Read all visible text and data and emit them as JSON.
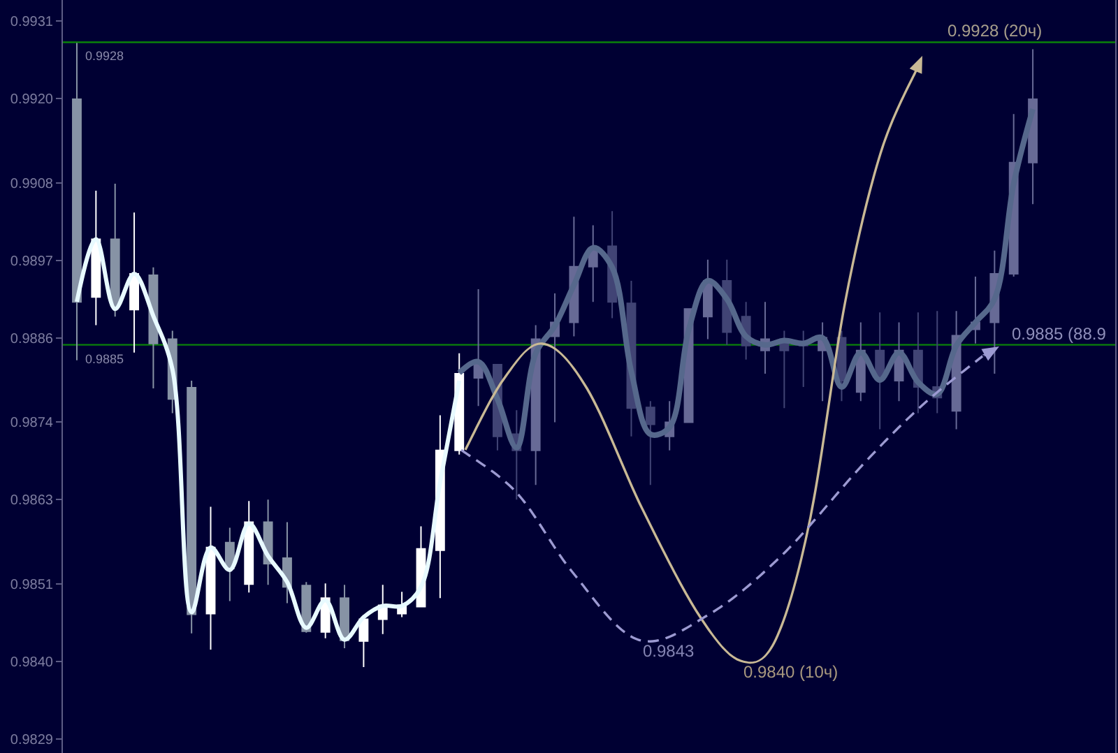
{
  "chart_data": {
    "type": "candlestick",
    "categories": [
      null,
      null,
      null,
      null,
      null,
      null,
      null,
      null,
      null,
      null,
      null,
      null,
      null,
      null,
      null,
      null,
      null,
      null,
      null,
      null,
      null,
      null,
      null,
      null,
      null,
      null,
      null,
      null,
      null,
      null,
      null,
      null,
      null,
      null,
      null,
      null,
      null,
      null,
      null,
      null,
      null,
      null,
      null,
      null,
      null,
      null,
      null,
      null,
      null,
      null,
      null,
      null,
      null,
      null,
      null
    ],
    "ylim": [
      0.9827,
      0.9934
    ],
    "yticks": [
      0.9829,
      {
        "value": 0.984,
        "label": "0.9840"
      },
      0.9851,
      0.9863,
      0.9874,
      0.9886,
      0.9897,
      0.9908,
      {
        "value": 0.992,
        "label": "0.9920"
      },
      0.9931
    ],
    "tick_labels": "y",
    "series": [
      {
        "type": "line",
        "color": "#e8faff",
        "values": [
          0.98911,
          0.99,
          0.98901,
          0.98951,
          0.98891,
          0.98815,
          0.9847,
          0.98562,
          0.9853,
          0.98596,
          0.9855,
          0.98513,
          0.98448,
          0.98487,
          0.98431,
          0.98463,
          0.98479,
          0.98479,
          0.98506,
          0.98655,
          0.98799,
          null,
          null,
          null,
          null,
          null,
          null,
          null,
          null,
          null,
          null,
          null,
          null,
          null,
          null,
          null,
          null,
          null,
          null,
          null,
          null,
          null,
          null,
          null,
          null,
          null,
          null,
          null,
          null,
          null,
          null,
          null,
          null,
          null,
          null
        ]
      },
      {
        "type": "line",
        "color": "#56688c",
        "values": [
          null,
          null,
          null,
          null,
          null,
          null,
          null,
          null,
          null,
          null,
          null,
          null,
          null,
          null,
          null,
          null,
          null,
          null,
          null,
          null,
          0.9881,
          0.98826,
          0.98773,
          0.98704,
          0.98838,
          0.98877,
          0.98935,
          0.98988,
          0.9896,
          0.98812,
          0.98723,
          0.98733,
          0.98871,
          0.98941,
          0.98915,
          0.98862,
          0.9885,
          0.98856,
          0.98852,
          0.9886,
          0.9879,
          0.98839,
          0.988,
          0.98839,
          0.98797,
          0.9878,
          0.98849,
          0.98882,
          0.98915,
          0.99079,
          0.99185,
          null,
          null,
          null,
          null
        ]
      },
      {
        "ohlc": [
          [
            0.99199,
            0.99279,
            0.98828,
            0.98911
          ],
          [
            0.98918,
            0.99069,
            0.98878,
            0.99
          ],
          [
            0.99,
            0.99079,
            0.9889,
            0.98905
          ],
          [
            0.989,
            0.99038,
            0.98839,
            0.98951
          ],
          [
            0.98949,
            0.9896,
            0.98788,
            0.98852
          ],
          [
            0.98858,
            0.9887,
            0.98753,
            0.98773
          ],
          [
            0.98789,
            0.98799,
            0.9844,
            0.98467
          ],
          [
            0.98468,
            0.9862,
            0.98417,
            0.98562
          ],
          [
            0.98569,
            0.9859,
            0.98486,
            0.98532
          ],
          [
            0.9851,
            0.98628,
            0.98498,
            0.98598
          ],
          [
            0.98598,
            0.9863,
            0.98509,
            0.98539
          ],
          [
            0.98547,
            0.98598,
            0.98483,
            0.98506
          ],
          [
            0.98508,
            0.98513,
            0.98441,
            0.98443
          ],
          [
            0.98442,
            0.98511,
            0.98433,
            0.9849
          ],
          [
            0.9849,
            0.98509,
            0.98419,
            0.9843
          ],
          [
            0.98429,
            0.98466,
            0.98392,
            0.9846
          ],
          [
            0.9846,
            0.98509,
            0.98439,
            0.9848
          ],
          [
            0.98468,
            0.98499,
            0.98463,
            0.9848
          ],
          [
            0.98478,
            0.98592,
            0.98478,
            0.9856
          ],
          [
            0.98558,
            0.9875,
            0.9849,
            0.987
          ],
          [
            0.987,
            0.98838,
            0.98694,
            0.98809
          ],
          [
            0.98803,
            0.98929,
            0.98763,
            0.98822
          ],
          [
            0.98822,
            0.98822,
            0.987,
            0.9872
          ],
          [
            0.98723,
            0.98757,
            0.9863,
            0.987
          ],
          [
            0.987,
            0.98878,
            0.98651,
            0.98858
          ],
          [
            0.98862,
            0.98923,
            0.9874,
            0.98882
          ],
          [
            0.98882,
            0.99032,
            0.98862,
            0.98961
          ],
          [
            0.98961,
            0.9902,
            0.98911,
            0.98988
          ],
          [
            0.9899,
            0.9904,
            0.98888,
            0.98911
          ],
          [
            0.98909,
            0.98941,
            0.9872,
            0.9876
          ],
          [
            0.98761,
            0.9877,
            0.98651,
            0.98737
          ],
          [
            0.9872,
            0.9877,
            0.987,
            0.9874
          ],
          [
            0.9874,
            0.98901,
            0.9874,
            0.98901
          ],
          [
            0.9889,
            0.98971,
            0.98858,
            0.98941
          ],
          [
            0.98941,
            0.98971,
            0.9885,
            0.98868
          ],
          [
            0.9889,
            0.98911,
            0.98829,
            0.98849
          ],
          [
            0.98842,
            0.98911,
            0.98809,
            0.98858
          ],
          [
            0.98858,
            0.9887,
            0.9876,
            0.98842
          ],
          [
            0.98852,
            0.9887,
            0.9879,
            0.98849
          ],
          [
            0.98842,
            0.98882,
            0.9877,
            0.9886
          ],
          [
            0.9886,
            0.9887,
            0.9877,
            0.98799
          ],
          [
            0.98783,
            0.98882,
            0.9877,
            0.98842
          ],
          [
            0.98842,
            0.98896,
            0.9873,
            0.98801
          ],
          [
            0.98799,
            0.98882,
            0.9877,
            0.98842
          ],
          [
            0.98842,
            0.98896,
            0.98753,
            0.9879
          ],
          [
            0.9879,
            0.98898,
            0.98753,
            0.98775
          ],
          [
            0.98756,
            0.98898,
            0.9873,
            0.98863
          ],
          [
            0.98872,
            0.98947,
            0.98852,
            0.98882
          ],
          [
            0.98882,
            0.98984,
            0.98809,
            0.98951
          ],
          [
            0.98951,
            0.99178,
            0.98947,
            0.99109
          ],
          [
            0.99109,
            0.9927,
            0.9905,
            0.99199
          ],
          null,
          null,
          null,
          null
        ],
        "colors": [
          "#8793a5",
          "#ffffff",
          "#8793a5",
          "#ffffff",
          "#8793a5",
          "#8793a5",
          "#8793a5",
          "#ffffff",
          "#8793a5",
          "#ffffff",
          "#8793a5",
          "#8793a5",
          "#8793a5",
          "#ffffff",
          "#8793a5",
          "#ffffff",
          "#ffffff",
          "#ffffff",
          "#ffffff",
          "#ffffff",
          "#ffffff",
          "#676a96",
          "#414475",
          "#414475",
          "#676a96",
          "#676a96",
          "#676a96",
          "#676a96",
          "#414475",
          "#414475",
          "#414475",
          "#676a96",
          "#676a96",
          "#676a96",
          "#414475",
          "#414475",
          "#676a96",
          "#414475",
          "#414475",
          "#676a96",
          "#414475",
          "#676a96",
          "#414475",
          "#676a96",
          "#414475",
          "#414475",
          "#676a96",
          "#676a96",
          "#676a96",
          "#676a96",
          "#676a96",
          null,
          null,
          null,
          null
        ]
      }
    ],
    "ref_lines": [
      {
        "axis": "y",
        "value": 0.9928,
        "label": "0.9928",
        "color": "#0a820a"
      },
      {
        "axis": "y",
        "value": 0.9885,
        "label": "0.9885",
        "color": "#0a820a"
      }
    ],
    "annotations": [
      "0.9928 (20ч)",
      "0.9885 (88.9",
      "0.9843",
      "0.9840 (10ч)"
    ]
  }
}
